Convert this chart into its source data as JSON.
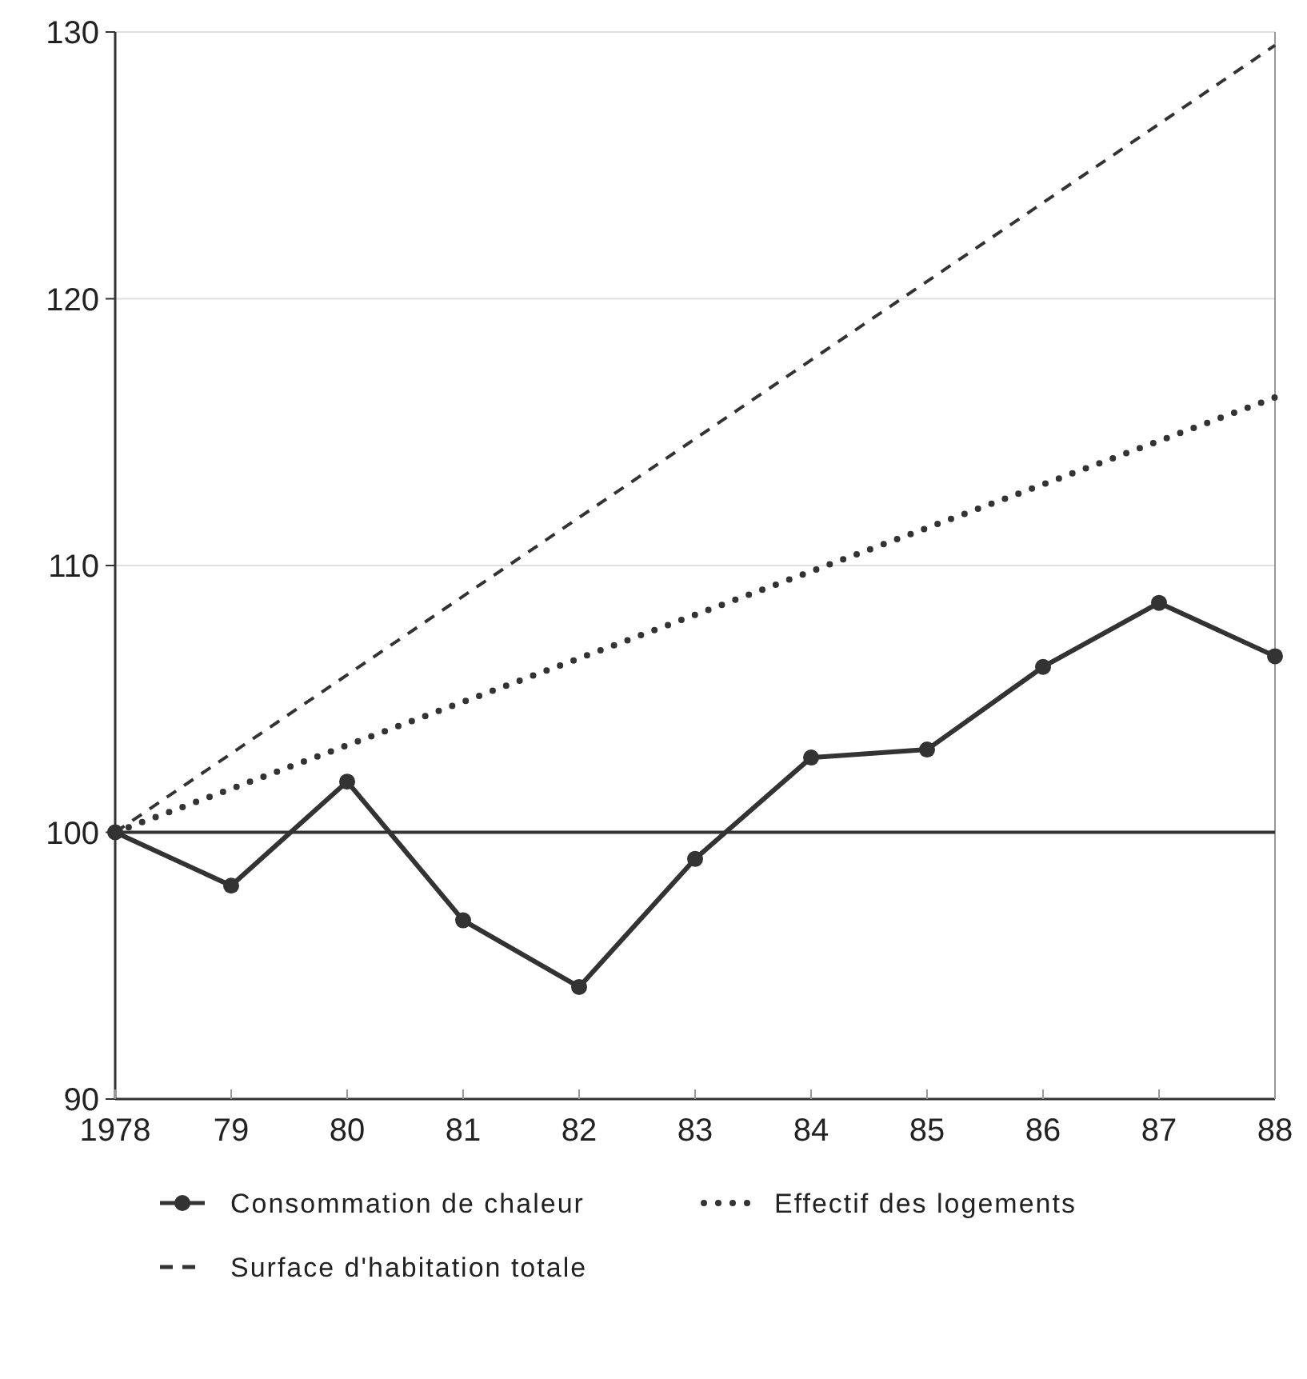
{
  "chart_data": {
    "type": "line",
    "xlim": [
      1978,
      1988
    ],
    "xticks": [
      1978,
      {
        "value": 1979,
        "label": "79"
      },
      {
        "value": 1980,
        "label": "80"
      },
      {
        "value": 1981,
        "label": "81"
      },
      {
        "value": 1982,
        "label": "82"
      },
      {
        "value": 1983,
        "label": "83"
      },
      {
        "value": 1984,
        "label": "84"
      },
      {
        "value": 1985,
        "label": "85"
      },
      {
        "value": 1986,
        "label": "86"
      },
      {
        "value": 1987,
        "label": "87"
      },
      {
        "value": 1988,
        "label": "88"
      }
    ],
    "ylim": [
      90,
      130
    ],
    "yticks": [
      90,
      100,
      110,
      120,
      130
    ],
    "grid": "y",
    "legend": "bottom",
    "ref_lines": [
      {
        "axis": "y",
        "value": 100,
        "color": "#333333",
        "line_style": "solid"
      }
    ],
    "series": [
      {
        "name": "Consommation de chaleur",
        "color": "#333333",
        "marker": "circle",
        "line_style": "solid",
        "x": [
          1978,
          1979,
          1980,
          1981,
          1982,
          1983,
          1984,
          1985,
          1986,
          1987,
          1988
        ],
        "values": [
          100,
          98.0,
          101.9,
          96.7,
          94.2,
          99.0,
          102.8,
          103.1,
          106.2,
          108.6,
          106.6
        ]
      },
      {
        "name": "Effectif des logements",
        "color": "#333333",
        "marker": "none",
        "line_style": "dotted",
        "x": [
          1978,
          1988
        ],
        "values": [
          100,
          116.3
        ]
      },
      {
        "name": "Surface d'habitation totale",
        "color": "#333333",
        "marker": "none",
        "line_style": "dashed",
        "x": [
          1978,
          1988
        ],
        "values": [
          100,
          129.5
        ]
      }
    ]
  }
}
